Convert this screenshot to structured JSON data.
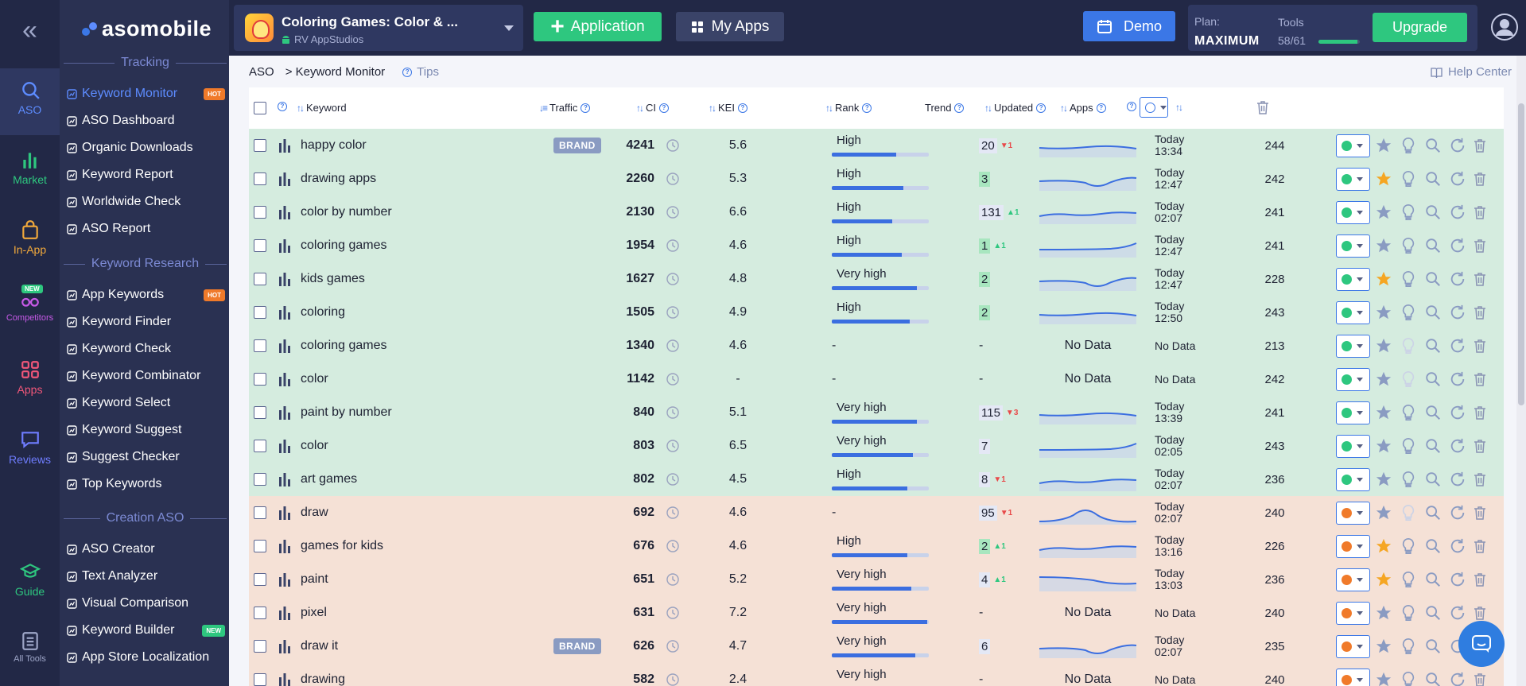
{
  "rail": {
    "items": [
      {
        "label": "ASO",
        "icon": "search-icon",
        "color": "#5d8cff"
      },
      {
        "label": "Market",
        "icon": "bar-chart-icon",
        "color": "#2ec77f"
      },
      {
        "label": "In-App",
        "icon": "shopping-bag-icon",
        "color": "#f2a93b"
      },
      {
        "label": "Competitors",
        "icon": "glasses-icon",
        "color": "#c85ae8",
        "badge": "NEW"
      },
      {
        "label": "Apps",
        "icon": "grid-icon",
        "color": "#f2577a"
      },
      {
        "label": "Reviews",
        "icon": "chat-icon",
        "color": "#6f7dff"
      },
      {
        "label": "Guide",
        "icon": "graduation-cap-icon",
        "color": "#2ec77f"
      },
      {
        "label": "All Tools",
        "icon": "list-icon",
        "color": "#9ea6c8"
      }
    ]
  },
  "brand": {
    "name": "asomobile"
  },
  "menu": {
    "sections": [
      "Tracking",
      "Keyword Research",
      "Creation ASO"
    ],
    "tracking": [
      {
        "label": "Keyword Monitor",
        "tag": "HOT"
      },
      {
        "label": "ASO Dashboard"
      },
      {
        "label": "Organic Downloads"
      },
      {
        "label": "Keyword Report"
      },
      {
        "label": "Worldwide Check"
      },
      {
        "label": "ASO Report"
      }
    ],
    "research": [
      {
        "label": "App Keywords",
        "tag": "HOT"
      },
      {
        "label": "Keyword Finder"
      },
      {
        "label": "Keyword Check"
      },
      {
        "label": "Keyword Combinator"
      },
      {
        "label": "Keyword Select"
      },
      {
        "label": "Keyword Suggest"
      },
      {
        "label": "Suggest Checker"
      },
      {
        "label": "Top Keywords"
      }
    ],
    "creation": [
      {
        "label": "ASO Creator"
      },
      {
        "label": "Text Analyzer"
      },
      {
        "label": "Visual Comparison"
      },
      {
        "label": "Keyword Builder",
        "tag": "NEW"
      },
      {
        "label": "App Store Localization"
      }
    ]
  },
  "topbar": {
    "app_name": "Coloring Games: Color & ...",
    "developer": "RV AppStudios",
    "add_app": "Application",
    "my_apps": "My Apps",
    "demo": "Demo",
    "plan_label": "Plan:",
    "plan_name": "MAXIMUM",
    "tools_label": "Tools",
    "tools_count": "58/61",
    "tools_fraction": 0.95,
    "upgrade": "Upgrade"
  },
  "breadcrumb": {
    "root": "ASO",
    "current": "> Keyword Monitor",
    "tips": "Tips",
    "help": "Help Center"
  },
  "columns": {
    "keyword": "Keyword",
    "traffic": "Traffic",
    "ci": "CI",
    "kei": "KEI",
    "rank": "Rank",
    "trend": "Trend",
    "updated": "Updated",
    "apps": "Apps"
  },
  "colors": {
    "green_row": "#d5ecdf",
    "orange_row": "#f5e1d6",
    "accent": "#3b77e6",
    "success": "#2ec77f",
    "danger": "#e84a4a",
    "star_on": "#f5a623"
  },
  "rows": [
    {
      "keyword": "happy color",
      "brand": "BRAND",
      "traffic": "4241",
      "ci": "5.6",
      "kei": "High",
      "kei_level": 0.66,
      "rank": "20",
      "rank_top": false,
      "delta": "1",
      "delta_dir": "down",
      "trend": "flat",
      "updated": [
        "Today",
        "13:34"
      ],
      "apps": "244",
      "group": "green",
      "starred": false
    },
    {
      "keyword": "drawing apps",
      "traffic": "2260",
      "ci": "5.3",
      "kei": "High",
      "kei_level": 0.74,
      "rank": "3",
      "rank_top": true,
      "trend": "dip",
      "updated": [
        "Today",
        "12:47"
      ],
      "apps": "242",
      "group": "green",
      "starred": true
    },
    {
      "keyword": "color by number",
      "traffic": "2130",
      "ci": "6.6",
      "kei": "High",
      "kei_level": 0.62,
      "rank": "131",
      "rank_top": false,
      "delta": "1",
      "delta_dir": "up",
      "trend": "wave",
      "updated": [
        "Today",
        "02:07"
      ],
      "apps": "241",
      "group": "green",
      "starred": false
    },
    {
      "keyword": "coloring games",
      "traffic": "1954",
      "ci": "4.6",
      "kei": "High",
      "kei_level": 0.72,
      "rank": "1",
      "rank_top": true,
      "delta": "1",
      "delta_dir": "up",
      "trend": "rise",
      "updated": [
        "Today",
        "12:47"
      ],
      "apps": "241",
      "group": "green",
      "starred": false
    },
    {
      "keyword": "kids games",
      "traffic": "1627",
      "ci": "4.8",
      "kei": "Very high",
      "kei_level": 0.88,
      "rank": "2",
      "rank_top": true,
      "trend": "dip",
      "updated": [
        "Today",
        "12:47"
      ],
      "apps": "228",
      "group": "green",
      "starred": true
    },
    {
      "keyword": "coloring",
      "traffic": "1505",
      "ci": "4.9",
      "kei": "High",
      "kei_level": 0.8,
      "rank": "2",
      "rank_top": true,
      "trend": "flat",
      "updated": [
        "Today",
        "12:50"
      ],
      "apps": "243",
      "group": "green",
      "starred": false
    },
    {
      "keyword": "coloring games",
      "traffic": "1340",
      "ci": "4.6",
      "kei": "-",
      "rank": "-",
      "trend": "none",
      "trend_text": "No Data",
      "updated": [
        "No Data"
      ],
      "apps": "213",
      "group": "green",
      "starred": false,
      "bulb_off": true
    },
    {
      "keyword": "color",
      "traffic": "1142",
      "ci": "-",
      "kei": "-",
      "rank": "-",
      "trend": "none",
      "trend_text": "No Data",
      "updated": [
        "No Data"
      ],
      "apps": "242",
      "group": "green",
      "starred": false,
      "bulb_off": true
    },
    {
      "keyword": "paint by number",
      "traffic": "840",
      "ci": "5.1",
      "kei": "Very high",
      "kei_level": 0.88,
      "rank": "115",
      "rank_top": false,
      "delta": "3",
      "delta_dir": "down",
      "trend": "flat",
      "updated": [
        "Today",
        "13:39"
      ],
      "apps": "241",
      "group": "green",
      "starred": false
    },
    {
      "keyword": "color",
      "traffic": "803",
      "ci": "6.5",
      "kei": "Very high",
      "kei_level": 0.84,
      "rank": "7",
      "rank_top": false,
      "trend": "rise",
      "updated": [
        "Today",
        "02:05"
      ],
      "apps": "243",
      "group": "green",
      "starred": false
    },
    {
      "keyword": "art games",
      "traffic": "802",
      "ci": "4.5",
      "kei": "High",
      "kei_level": 0.78,
      "rank": "8",
      "rank_top": false,
      "delta": "1",
      "delta_dir": "down",
      "trend": "wave",
      "updated": [
        "Today",
        "02:07"
      ],
      "apps": "236",
      "group": "green",
      "starred": false
    },
    {
      "keyword": "draw",
      "traffic": "692",
      "ci": "4.6",
      "kei": "-",
      "rank": "95",
      "rank_top": false,
      "delta": "1",
      "delta_dir": "down",
      "trend": "bump",
      "updated": [
        "Today",
        "02:07"
      ],
      "apps": "240",
      "group": "orange",
      "starred": false,
      "bulb_off": true
    },
    {
      "keyword": "games for kids",
      "traffic": "676",
      "ci": "4.6",
      "kei": "High",
      "kei_level": 0.78,
      "rank": "2",
      "rank_top": true,
      "delta": "1",
      "delta_dir": "up",
      "trend": "wave",
      "updated": [
        "Today",
        "13:16"
      ],
      "apps": "226",
      "group": "orange",
      "starred": true
    },
    {
      "keyword": "paint",
      "traffic": "651",
      "ci": "5.2",
      "kei": "Very high",
      "kei_level": 0.82,
      "rank": "4",
      "rank_top": false,
      "delta": "1",
      "delta_dir": "up",
      "trend": "fall",
      "updated": [
        "Today",
        "13:03"
      ],
      "apps": "236",
      "group": "orange",
      "starred": true
    },
    {
      "keyword": "pixel",
      "traffic": "631",
      "ci": "7.2",
      "kei": "Very high",
      "kei_level": 0.98,
      "rank": "-",
      "trend": "none",
      "trend_text": "No Data",
      "updated": [
        "No Data"
      ],
      "apps": "240",
      "group": "orange",
      "starred": false
    },
    {
      "keyword": "draw it",
      "brand": "BRAND",
      "traffic": "626",
      "ci": "4.7",
      "kei": "Very high",
      "kei_level": 0.86,
      "rank": "6",
      "rank_top": false,
      "trend": "dip",
      "updated": [
        "Today",
        "02:07"
      ],
      "apps": "235",
      "group": "orange",
      "starred": false
    },
    {
      "keyword": "drawing",
      "traffic": "582",
      "ci": "2.4",
      "kei": "Very high",
      "kei_level": 0.9,
      "rank": "-",
      "trend": "none",
      "trend_text": "No Data",
      "updated": [
        "No Data"
      ],
      "apps": "240",
      "group": "orange",
      "starred": false
    }
  ]
}
